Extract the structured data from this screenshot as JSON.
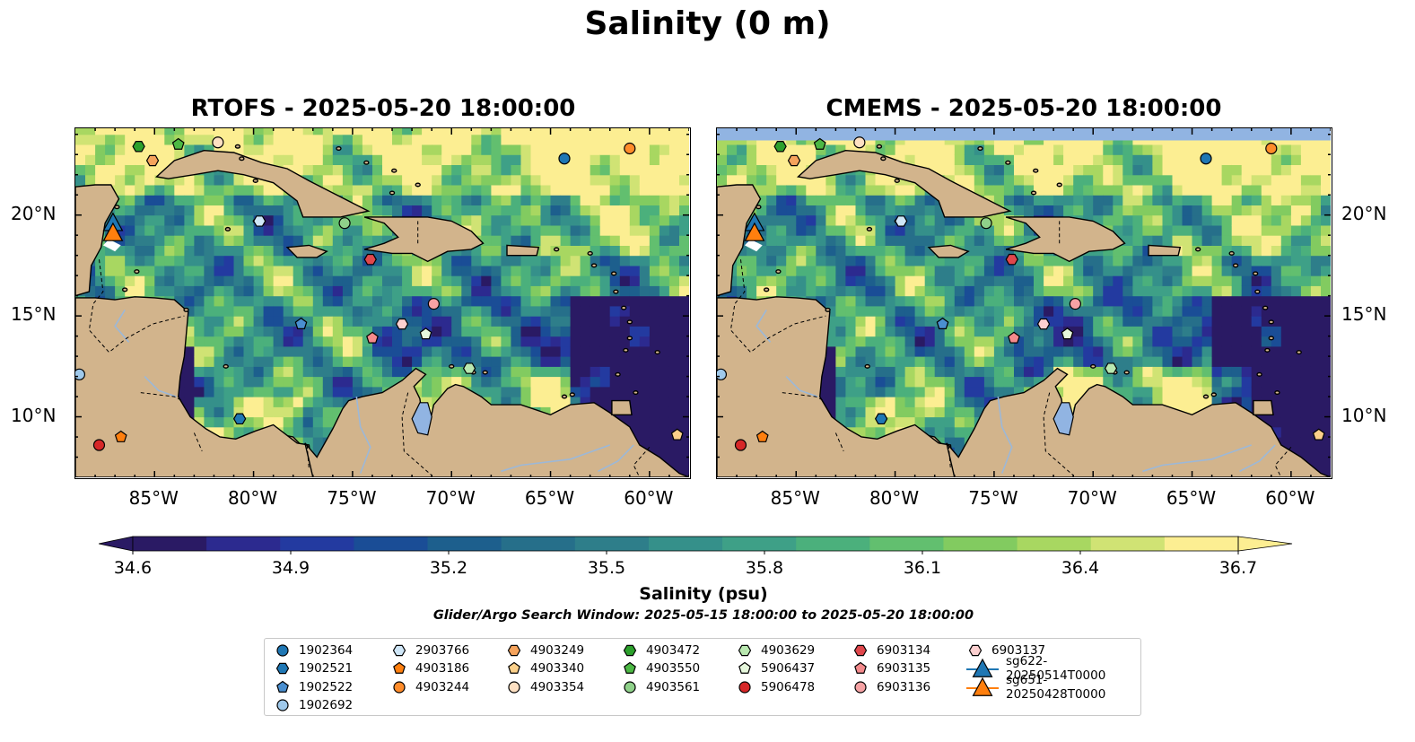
{
  "figure": {
    "suptitle": "Salinity (0 m)",
    "panels": [
      {
        "title": "RTOFS - 2025-05-20 18:00:00",
        "has_north_no_data_band": false
      },
      {
        "title": "CMEMS - 2025-05-20 18:00:00",
        "has_north_no_data_band": true
      }
    ],
    "colorbar": {
      "label": "Salinity (psu)",
      "ticks": [
        "34.6",
        "34.9",
        "35.2",
        "35.5",
        "35.8",
        "36.1",
        "36.4",
        "36.7"
      ],
      "range": [
        34.6,
        36.7
      ],
      "extend": "both",
      "colormap": "haline",
      "colors": [
        "#2a1a64",
        "#2c2a8f",
        "#233aa0",
        "#1a4d96",
        "#1d5f8d",
        "#266f8a",
        "#2e7e8a",
        "#35908a",
        "#3ea087",
        "#4bb07c",
        "#62bf6f",
        "#82cb60",
        "#a8d761",
        "#d0e374",
        "#fcee92"
      ]
    },
    "search_window_note": "Glider/Argo Search Window: 2025-05-15 18:00:00 to 2025-05-20 18:00:00",
    "colors": {
      "land": "#d2b48c",
      "no_data": "#91b4e2",
      "river": "#9cb8d8"
    }
  },
  "chart_data": {
    "type": "map",
    "variable": "Salinity (0 m)",
    "units": "psu",
    "axes": {
      "lon_range": [
        -89,
        -58
      ],
      "lat_range": [
        7,
        24.3
      ],
      "x_tick_values": [
        -85,
        -80,
        -75,
        -70,
        -65,
        -60
      ],
      "x_tick_labels": [
        "85°W",
        "80°W",
        "75°W",
        "70°W",
        "65°W",
        "60°W"
      ],
      "y_tick_values": [
        10,
        15,
        20
      ],
      "y_tick_labels": [
        "10°N",
        "15°N",
        "20°N"
      ]
    },
    "markers": [
      {
        "id": "1902364",
        "lon": -64.3,
        "lat": 22.8,
        "shape": "circle",
        "color": "#1f77b4"
      },
      {
        "id": "1902521",
        "lon": -80.7,
        "lat": 9.9,
        "shape": "hexagon",
        "color": "#1f77b4"
      },
      {
        "id": "1902522",
        "lon": -77.6,
        "lat": 14.6,
        "shape": "pentagon",
        "color": "#4a8fd0"
      },
      {
        "id": "1902692",
        "lon": -88.8,
        "lat": 12.1,
        "shape": "circle",
        "color": "#9fc9eb"
      },
      {
        "id": "2903766",
        "lon": -79.7,
        "lat": 19.7,
        "shape": "hexagon",
        "color": "#cfe6f7"
      },
      {
        "id": "4903186",
        "lon": -86.7,
        "lat": 9.0,
        "shape": "pentagon",
        "color": "#ff7f0e"
      },
      {
        "id": "4903244",
        "lon": -61.0,
        "lat": 23.3,
        "shape": "circle",
        "color": "#ff8c2a"
      },
      {
        "id": "4903249",
        "lon": -85.1,
        "lat": 22.7,
        "shape": "hexagon",
        "color": "#f5a35c"
      },
      {
        "id": "4903340",
        "lon": -58.6,
        "lat": 9.1,
        "shape": "pentagon",
        "color": "#fbd08a"
      },
      {
        "id": "4903354",
        "lon": -81.8,
        "lat": 23.6,
        "shape": "circle",
        "color": "#fde0c2"
      },
      {
        "id": "4903472",
        "lon": -85.8,
        "lat": 23.4,
        "shape": "hexagon",
        "color": "#2ca02c"
      },
      {
        "id": "4903550",
        "lon": -83.8,
        "lat": 23.5,
        "shape": "pentagon",
        "color": "#4cb844"
      },
      {
        "id": "4903561",
        "lon": -75.4,
        "lat": 19.6,
        "shape": "circle",
        "color": "#8fd18a"
      },
      {
        "id": "4903629",
        "lon": -69.1,
        "lat": 12.4,
        "shape": "hexagon",
        "color": "#b9e8b0"
      },
      {
        "id": "5906437",
        "lon": -71.3,
        "lat": 14.1,
        "shape": "pentagon",
        "color": "#e6f8dc"
      },
      {
        "id": "5906478",
        "lon": -87.8,
        "lat": 8.6,
        "shape": "circle",
        "color": "#d62728"
      },
      {
        "id": "6903134",
        "lon": -74.1,
        "lat": 17.8,
        "shape": "hexagon",
        "color": "#e0474c"
      },
      {
        "id": "6903135",
        "lon": -74.0,
        "lat": 13.9,
        "shape": "pentagon",
        "color": "#f48a8c"
      },
      {
        "id": "6903136",
        "lon": -70.9,
        "lat": 15.6,
        "shape": "circle",
        "color": "#f6a2a4"
      },
      {
        "id": "6903137",
        "lon": -72.5,
        "lat": 14.6,
        "shape": "hexagon",
        "color": "#fcd0d0"
      },
      {
        "id": "sg622-20250514T0000",
        "lon": -87.1,
        "lat": 19.6,
        "shape": "triangle",
        "color": "#1f77b4"
      },
      {
        "id": "sg651-20250428T0000",
        "lon": -87.1,
        "lat": 19.1,
        "shape": "triangle",
        "color": "#ff7f0e"
      }
    ]
  },
  "legend": {
    "entries": [
      {
        "label": "1902364",
        "shape": "circle",
        "color": "#1f77b4"
      },
      {
        "label": "1902521",
        "shape": "hexagon",
        "color": "#1f77b4"
      },
      {
        "label": "1902522",
        "shape": "pentagon",
        "color": "#4a8fd0"
      },
      {
        "label": "1902692",
        "shape": "circle",
        "color": "#9fc9eb"
      },
      {
        "label": "2903766",
        "shape": "hexagon",
        "color": "#cfe6f7"
      },
      {
        "label": "4903186",
        "shape": "pentagon",
        "color": "#ff7f0e"
      },
      {
        "label": "4903244",
        "shape": "circle",
        "color": "#ff8c2a"
      },
      {
        "label": "4903249",
        "shape": "hexagon",
        "color": "#f5a35c"
      },
      {
        "label": "4903340",
        "shape": "pentagon",
        "color": "#fbd08a"
      },
      {
        "label": "4903354",
        "shape": "circle",
        "color": "#fde0c2"
      },
      {
        "label": "4903472",
        "shape": "hexagon",
        "color": "#2ca02c"
      },
      {
        "label": "4903550",
        "shape": "pentagon",
        "color": "#4cb844"
      },
      {
        "label": "4903561",
        "shape": "circle",
        "color": "#8fd18a"
      },
      {
        "label": "4903629",
        "shape": "hexagon",
        "color": "#b9e8b0"
      },
      {
        "label": "5906437",
        "shape": "pentagon",
        "color": "#e6f8dc"
      },
      {
        "label": "5906478",
        "shape": "circle",
        "color": "#d62728"
      },
      {
        "label": "6903134",
        "shape": "hexagon",
        "color": "#e0474c"
      },
      {
        "label": "6903135",
        "shape": "pentagon",
        "color": "#f48a8c"
      },
      {
        "label": "6903136",
        "shape": "circle",
        "color": "#f6a2a4"
      },
      {
        "label": "6903137",
        "shape": "hexagon",
        "color": "#fcd0d0"
      },
      {
        "label": "sg622-20250514T0000",
        "shape": "triangle-line",
        "color": "#1f77b4"
      },
      {
        "label": "sg651-20250428T0000",
        "shape": "triangle-line",
        "color": "#ff7f0e"
      }
    ]
  }
}
